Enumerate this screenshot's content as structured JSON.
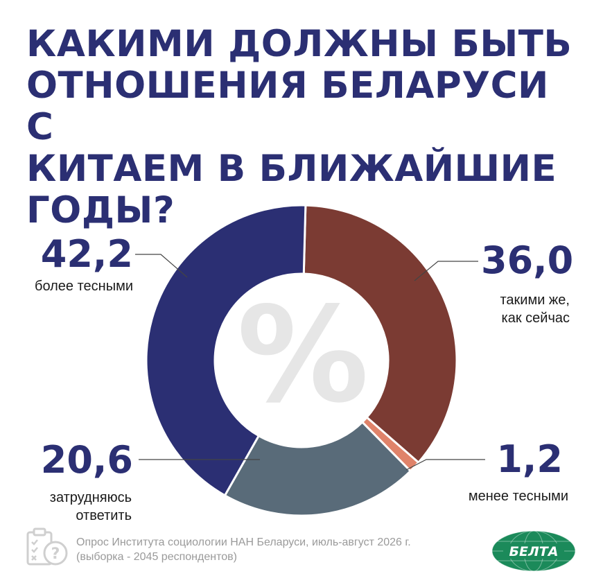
{
  "title_lines": [
    "КАКИМИ ДОЛЖНЫ БЫТЬ",
    "ОТНОШЕНИЯ БЕЛАРУСИ С",
    "КИТАЕМ В БЛИЖАЙШИЕ",
    "ГОДЫ?"
  ],
  "center_symbol": "%",
  "labels": {
    "more_close": {
      "value": "42,2",
      "caption_lines": [
        "более тесными"
      ]
    },
    "same": {
      "value": "36,0",
      "caption_lines": [
        "такими же,",
        "как сейчас"
      ]
    },
    "less_close": {
      "value": "1,2",
      "caption_lines": [
        "менее тесными"
      ]
    },
    "hard_to_say": {
      "value": "20,6",
      "caption_lines": [
        "затрудняюсь",
        "ответить"
      ]
    }
  },
  "source_lines": [
    "Опрос Института социологии НАН Беларуси, июль-август 2026 г.",
    "(выборка - 2045 респондентов)"
  ],
  "logo_text": "БЕЛТА",
  "chart_data": {
    "type": "pie",
    "title": "КАКИМИ ДОЛЖНЫ БЫТЬ ОТНОШЕНИЯ БЕЛАРУСИ С КИТАЕМ В БЛИЖАЙШИЕ ГОДЫ?",
    "categories": [
      "такими же, как сейчас",
      "менее тесными",
      "затрудняюсь ответить",
      "более тесными"
    ],
    "values": [
      36.0,
      1.2,
      20.6,
      42.2
    ],
    "colors": [
      "#7b3b33",
      "#e0836a",
      "#596b79",
      "#2b2f73"
    ],
    "unit": "%"
  }
}
